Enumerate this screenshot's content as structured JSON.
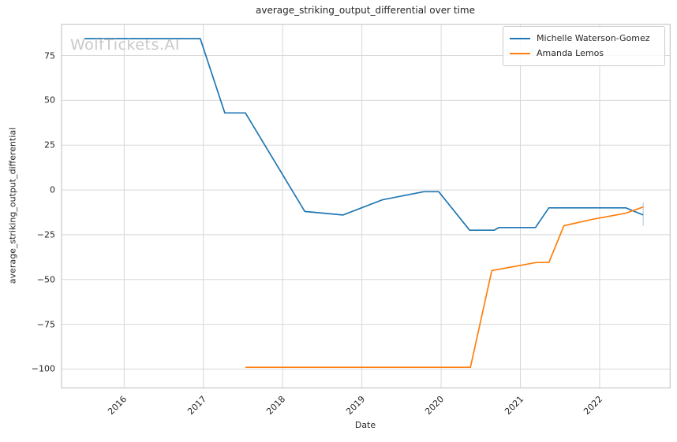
{
  "figure": {
    "title": "average_striking_output_differential over time",
    "watermark": "WolfTickets.AI",
    "background": "#ffffff",
    "text_color": "#262626",
    "grid_color": "#d8d8d8",
    "spine_color": "#c8c8c8",
    "watermark_color": "#c9c9c9"
  },
  "chart_data": {
    "type": "line",
    "title": "average_striking_output_differential over time",
    "xlabel": "Date",
    "ylabel": "average_striking_output_differential",
    "grid": true,
    "legend_position": "upper right",
    "x_ticks": [
      2016,
      2017,
      2018,
      2019,
      2020,
      2021,
      2022
    ],
    "y_ticks": [
      75,
      50,
      25,
      0,
      -25,
      -50,
      -75,
      -100
    ],
    "xlim": [
      2015.21,
      2022.89
    ],
    "ylim": [
      -110.5,
      92.4
    ],
    "series": [
      {
        "name": "Michelle Waterson-Gomez",
        "color": "#1f77b4",
        "points": [
          [
            2015.5,
            84.5
          ],
          [
            2016.96,
            84.5
          ],
          [
            2017.27,
            43
          ],
          [
            2017.53,
            43
          ],
          [
            2018.28,
            -12
          ],
          [
            2018.76,
            -14
          ],
          [
            2019.26,
            -5.5
          ],
          [
            2019.78,
            -1
          ],
          [
            2019.97,
            -1
          ],
          [
            2020.36,
            -22.5
          ],
          [
            2020.67,
            -22.5
          ],
          [
            2020.73,
            -21
          ],
          [
            2021.19,
            -21
          ],
          [
            2021.36,
            -10
          ],
          [
            2022.33,
            -10
          ],
          [
            2022.55,
            -14
          ]
        ]
      },
      {
        "name": "Amanda Lemos",
        "color": "#ff7f0e",
        "points": [
          [
            2017.53,
            -99
          ],
          [
            2020.37,
            -99
          ],
          [
            2020.64,
            -45
          ],
          [
            2021.2,
            -40.5
          ],
          [
            2021.36,
            -40.5
          ],
          [
            2021.55,
            -20
          ],
          [
            2021.9,
            -16.5
          ],
          [
            2022.33,
            -13
          ],
          [
            2022.55,
            -9.5
          ]
        ]
      }
    ],
    "end_tick": {
      "x": 2022.55,
      "y_top": -7,
      "y_bottom": -20,
      "color": "#1f77b4",
      "opacity": 0.35
    }
  }
}
